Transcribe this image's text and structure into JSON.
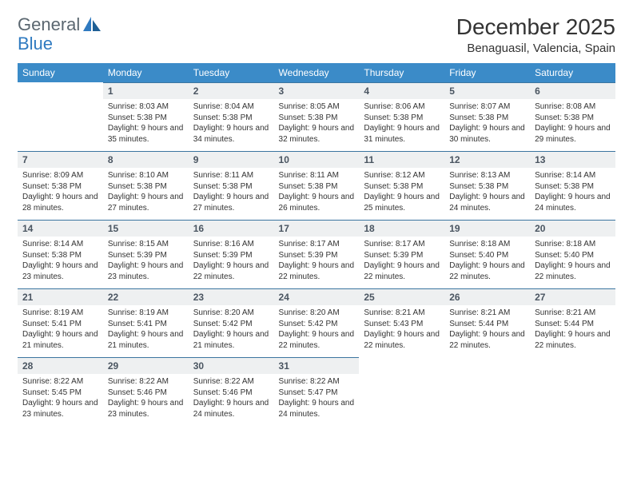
{
  "brand": {
    "word1": "General",
    "word2": "Blue"
  },
  "title": "December 2025",
  "location": "Benaguasil, Valencia, Spain",
  "colors": {
    "header_bg": "#3b8bc8",
    "daynum_bg": "#eef0f1",
    "daynum_border": "#3b75a0",
    "logo_gray": "#5b6770",
    "logo_blue": "#2f7ac0"
  },
  "weekdays": [
    "Sunday",
    "Monday",
    "Tuesday",
    "Wednesday",
    "Thursday",
    "Friday",
    "Saturday"
  ],
  "weeks": [
    [
      null,
      {
        "n": "1",
        "sr": "Sunrise: 8:03 AM",
        "ss": "Sunset: 5:38 PM",
        "dl": "Daylight: 9 hours and 35 minutes."
      },
      {
        "n": "2",
        "sr": "Sunrise: 8:04 AM",
        "ss": "Sunset: 5:38 PM",
        "dl": "Daylight: 9 hours and 34 minutes."
      },
      {
        "n": "3",
        "sr": "Sunrise: 8:05 AM",
        "ss": "Sunset: 5:38 PM",
        "dl": "Daylight: 9 hours and 32 minutes."
      },
      {
        "n": "4",
        "sr": "Sunrise: 8:06 AM",
        "ss": "Sunset: 5:38 PM",
        "dl": "Daylight: 9 hours and 31 minutes."
      },
      {
        "n": "5",
        "sr": "Sunrise: 8:07 AM",
        "ss": "Sunset: 5:38 PM",
        "dl": "Daylight: 9 hours and 30 minutes."
      },
      {
        "n": "6",
        "sr": "Sunrise: 8:08 AM",
        "ss": "Sunset: 5:38 PM",
        "dl": "Daylight: 9 hours and 29 minutes."
      }
    ],
    [
      {
        "n": "7",
        "sr": "Sunrise: 8:09 AM",
        "ss": "Sunset: 5:38 PM",
        "dl": "Daylight: 9 hours and 28 minutes."
      },
      {
        "n": "8",
        "sr": "Sunrise: 8:10 AM",
        "ss": "Sunset: 5:38 PM",
        "dl": "Daylight: 9 hours and 27 minutes."
      },
      {
        "n": "9",
        "sr": "Sunrise: 8:11 AM",
        "ss": "Sunset: 5:38 PM",
        "dl": "Daylight: 9 hours and 27 minutes."
      },
      {
        "n": "10",
        "sr": "Sunrise: 8:11 AM",
        "ss": "Sunset: 5:38 PM",
        "dl": "Daylight: 9 hours and 26 minutes."
      },
      {
        "n": "11",
        "sr": "Sunrise: 8:12 AM",
        "ss": "Sunset: 5:38 PM",
        "dl": "Daylight: 9 hours and 25 minutes."
      },
      {
        "n": "12",
        "sr": "Sunrise: 8:13 AM",
        "ss": "Sunset: 5:38 PM",
        "dl": "Daylight: 9 hours and 24 minutes."
      },
      {
        "n": "13",
        "sr": "Sunrise: 8:14 AM",
        "ss": "Sunset: 5:38 PM",
        "dl": "Daylight: 9 hours and 24 minutes."
      }
    ],
    [
      {
        "n": "14",
        "sr": "Sunrise: 8:14 AM",
        "ss": "Sunset: 5:38 PM",
        "dl": "Daylight: 9 hours and 23 minutes."
      },
      {
        "n": "15",
        "sr": "Sunrise: 8:15 AM",
        "ss": "Sunset: 5:39 PM",
        "dl": "Daylight: 9 hours and 23 minutes."
      },
      {
        "n": "16",
        "sr": "Sunrise: 8:16 AM",
        "ss": "Sunset: 5:39 PM",
        "dl": "Daylight: 9 hours and 22 minutes."
      },
      {
        "n": "17",
        "sr": "Sunrise: 8:17 AM",
        "ss": "Sunset: 5:39 PM",
        "dl": "Daylight: 9 hours and 22 minutes."
      },
      {
        "n": "18",
        "sr": "Sunrise: 8:17 AM",
        "ss": "Sunset: 5:39 PM",
        "dl": "Daylight: 9 hours and 22 minutes."
      },
      {
        "n": "19",
        "sr": "Sunrise: 8:18 AM",
        "ss": "Sunset: 5:40 PM",
        "dl": "Daylight: 9 hours and 22 minutes."
      },
      {
        "n": "20",
        "sr": "Sunrise: 8:18 AM",
        "ss": "Sunset: 5:40 PM",
        "dl": "Daylight: 9 hours and 22 minutes."
      }
    ],
    [
      {
        "n": "21",
        "sr": "Sunrise: 8:19 AM",
        "ss": "Sunset: 5:41 PM",
        "dl": "Daylight: 9 hours and 21 minutes."
      },
      {
        "n": "22",
        "sr": "Sunrise: 8:19 AM",
        "ss": "Sunset: 5:41 PM",
        "dl": "Daylight: 9 hours and 21 minutes."
      },
      {
        "n": "23",
        "sr": "Sunrise: 8:20 AM",
        "ss": "Sunset: 5:42 PM",
        "dl": "Daylight: 9 hours and 21 minutes."
      },
      {
        "n": "24",
        "sr": "Sunrise: 8:20 AM",
        "ss": "Sunset: 5:42 PM",
        "dl": "Daylight: 9 hours and 22 minutes."
      },
      {
        "n": "25",
        "sr": "Sunrise: 8:21 AM",
        "ss": "Sunset: 5:43 PM",
        "dl": "Daylight: 9 hours and 22 minutes."
      },
      {
        "n": "26",
        "sr": "Sunrise: 8:21 AM",
        "ss": "Sunset: 5:44 PM",
        "dl": "Daylight: 9 hours and 22 minutes."
      },
      {
        "n": "27",
        "sr": "Sunrise: 8:21 AM",
        "ss": "Sunset: 5:44 PM",
        "dl": "Daylight: 9 hours and 22 minutes."
      }
    ],
    [
      {
        "n": "28",
        "sr": "Sunrise: 8:22 AM",
        "ss": "Sunset: 5:45 PM",
        "dl": "Daylight: 9 hours and 23 minutes."
      },
      {
        "n": "29",
        "sr": "Sunrise: 8:22 AM",
        "ss": "Sunset: 5:46 PM",
        "dl": "Daylight: 9 hours and 23 minutes."
      },
      {
        "n": "30",
        "sr": "Sunrise: 8:22 AM",
        "ss": "Sunset: 5:46 PM",
        "dl": "Daylight: 9 hours and 24 minutes."
      },
      {
        "n": "31",
        "sr": "Sunrise: 8:22 AM",
        "ss": "Sunset: 5:47 PM",
        "dl": "Daylight: 9 hours and 24 minutes."
      },
      null,
      null,
      null
    ]
  ]
}
